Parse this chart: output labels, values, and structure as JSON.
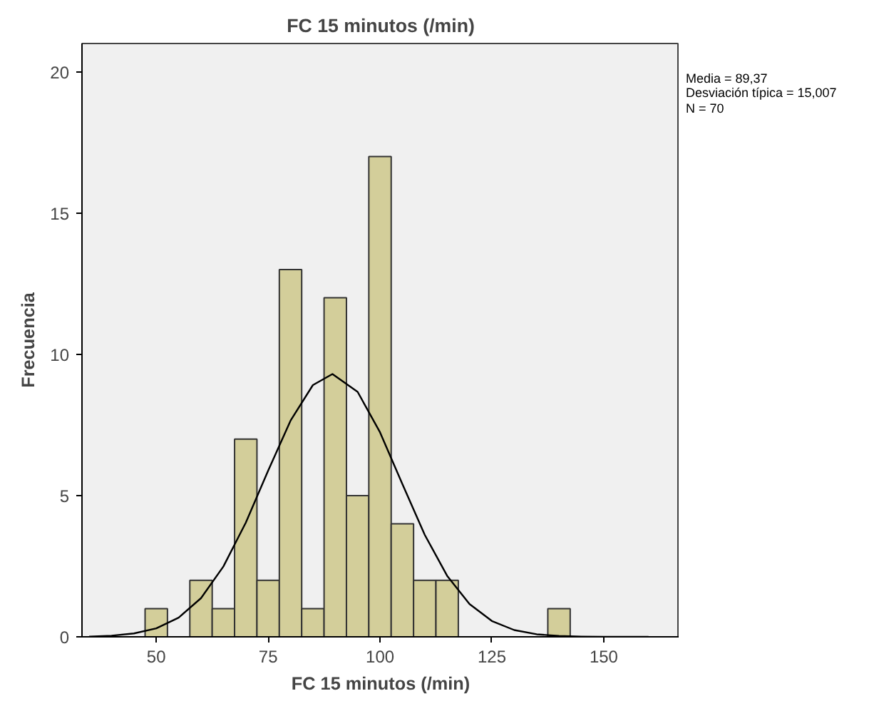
{
  "chart_data": {
    "type": "histogram",
    "title": "FC 15 minutos (/min)",
    "xlabel": "FC 15 minutos (/min)",
    "ylabel": "Frecuencia",
    "bins": [
      47.5,
      52.5,
      57.5,
      62.5,
      67.5,
      72.5,
      77.5,
      82.5,
      87.5,
      92.5,
      97.5,
      102.5,
      107.5,
      112.5,
      117.5,
      122.5,
      127.5,
      132.5,
      137.5,
      142.5
    ],
    "series": [
      {
        "color": "#d3ce9a",
        "values": [
          1,
          0,
          2,
          1,
          7,
          2,
          13,
          1,
          12,
          5,
          17,
          4,
          2,
          2,
          0,
          0,
          0,
          0,
          1
        ]
      },
      {
        "type": "line",
        "color": "#000000",
        "x": [
          35,
          40,
          45,
          50,
          55,
          60,
          65,
          70,
          75,
          80,
          85,
          89.37,
          95,
          100,
          105,
          110,
          115,
          120,
          125,
          130,
          135,
          140,
          145,
          150,
          160
        ],
        "values": [
          0.01,
          0.04,
          0.12,
          0.3,
          0.68,
          1.37,
          2.49,
          4.04,
          5.88,
          7.65,
          8.91,
          9.3,
          8.67,
          7.24,
          5.41,
          3.61,
          2.16,
          1.16,
          0.56,
          0.24,
          0.09,
          0.03,
          0.01,
          0,
          0
        ]
      }
    ],
    "xlim": [
      33.4,
      166.9
    ],
    "ylim": [
      0,
      21
    ],
    "xticks": [
      50,
      75,
      100,
      125,
      150
    ],
    "yticks": [
      0,
      5,
      10,
      15,
      20
    ],
    "grid": false,
    "annotations": [
      "Media = 89,37",
      "Desviación típica = 15,007",
      "N = 70"
    ]
  }
}
